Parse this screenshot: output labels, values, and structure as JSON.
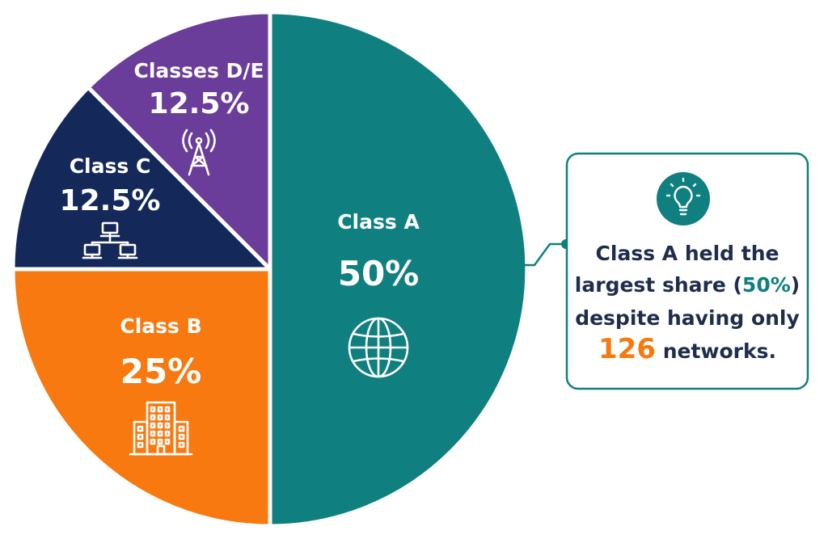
{
  "chart_data": {
    "type": "pie",
    "slices": [
      {
        "label": "Class A",
        "value": 50,
        "value_label": "50%",
        "color": "#0f7f7f",
        "icon": "globe-icon"
      },
      {
        "label": "Class B",
        "value": 25,
        "value_label": "25%",
        "color": "#f7790f",
        "icon": "building-icon"
      },
      {
        "label": "Class C",
        "value": 12.5,
        "value_label": "12.5%",
        "color": "#14295a",
        "icon": "network-icon"
      },
      {
        "label": "Classes D/E",
        "value": 12.5,
        "value_label": "12.5%",
        "color": "#6a3d9a",
        "icon": "antenna-tower-icon"
      }
    ],
    "start_angle_deg": 0,
    "direction": "clockwise",
    "legend": "none",
    "annotation": {
      "icon": "lightbulb-icon",
      "lines": [
        [
          "Class A held the"
        ],
        [
          "largest share (",
          "50%",
          ")"
        ],
        [
          "despite having only"
        ],
        [
          "126",
          " networks."
        ]
      ],
      "highlight_colors": {
        "50%": "#0f7f7f",
        "126": "#f7790f"
      },
      "text_color": "#1f2d4d",
      "border_color": "#0f7f7f"
    }
  }
}
